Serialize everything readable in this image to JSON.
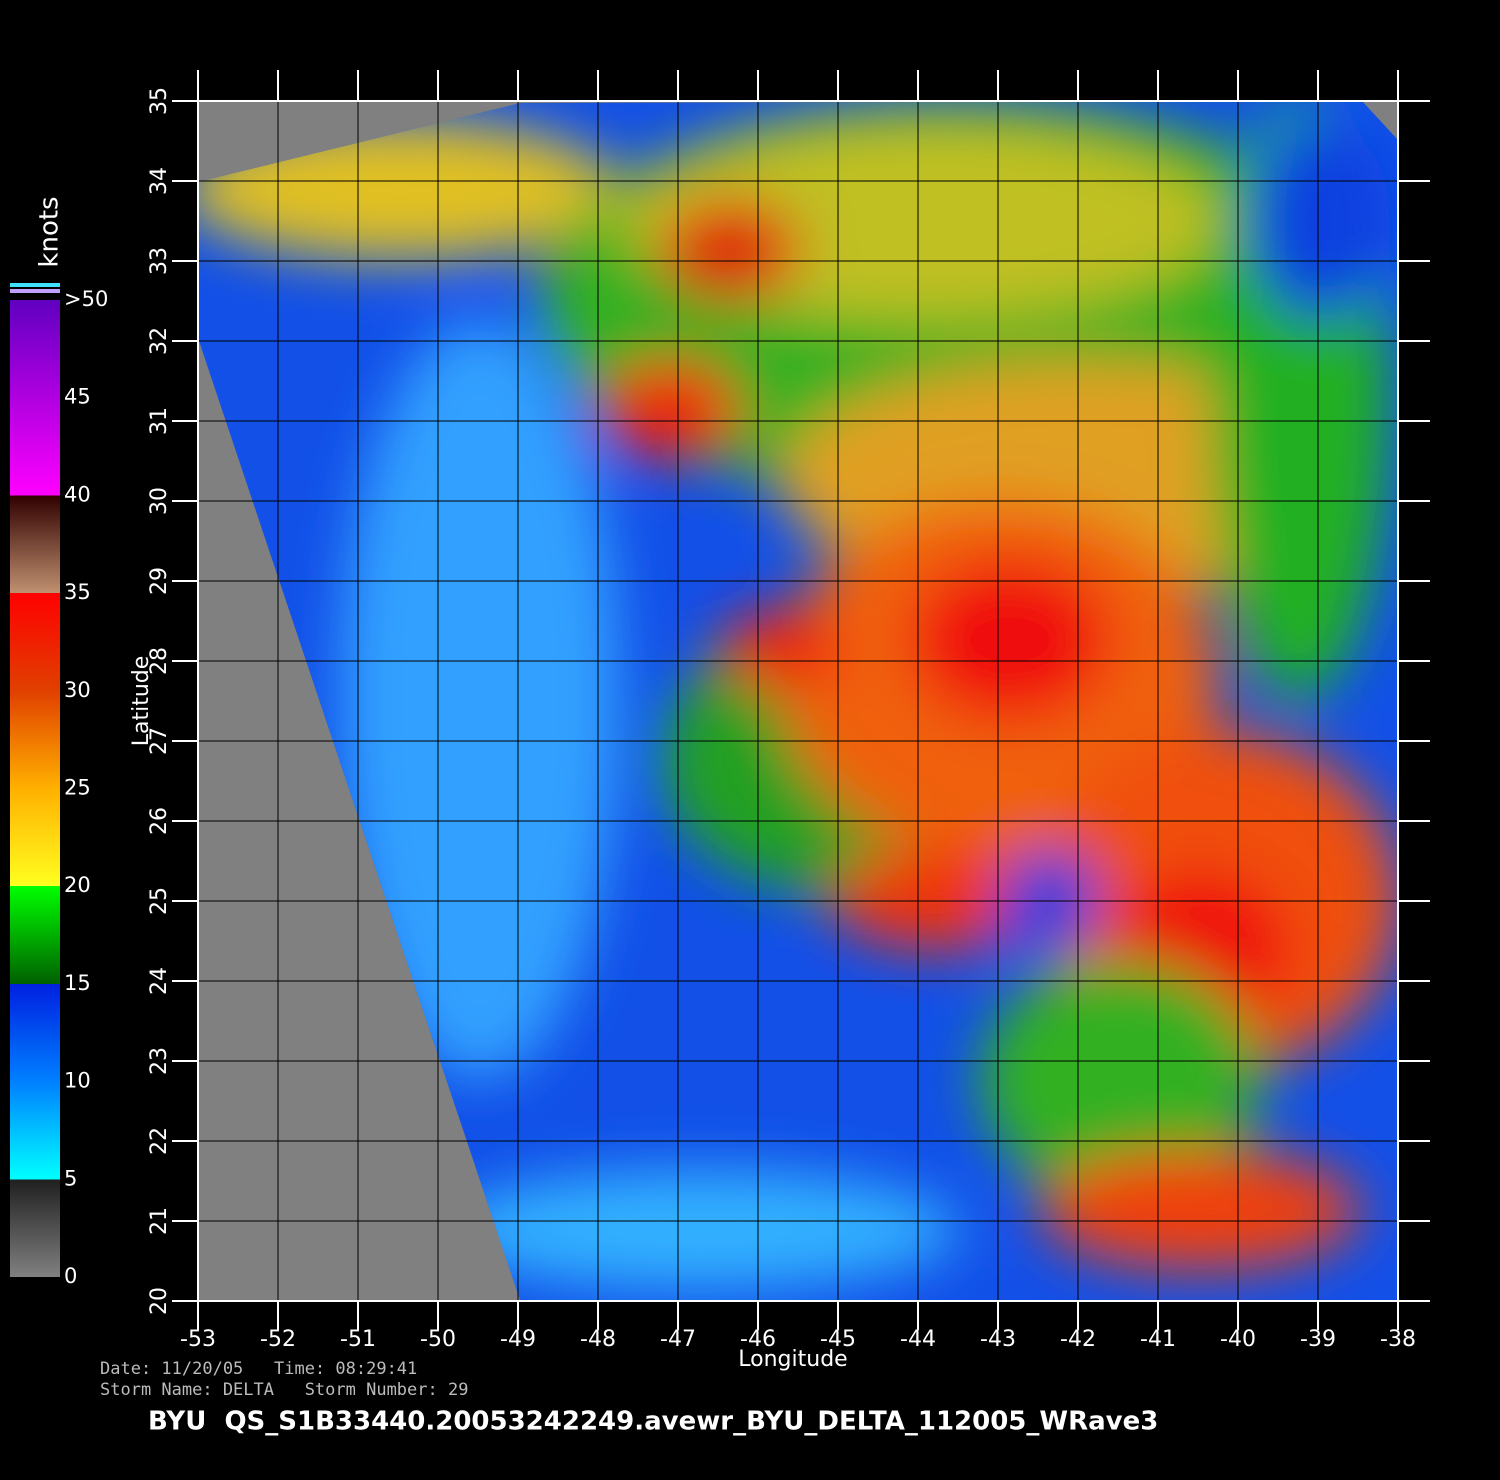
{
  "map": {
    "xlabel": "Longitude",
    "ylabel": "Latitude",
    "xlim": [
      -53,
      -38
    ],
    "ylim": [
      20,
      35
    ],
    "xticks": [
      -53,
      -52,
      -51,
      -50,
      -49,
      -48,
      -47,
      -46,
      -45,
      -44,
      -43,
      -42,
      -41,
      -40,
      -39,
      -38
    ],
    "yticks": [
      20,
      21,
      22,
      23,
      24,
      25,
      26,
      27,
      28,
      29,
      30,
      31,
      32,
      33,
      34,
      35
    ]
  },
  "colorbar": {
    "title": "knots",
    "lim": [
      0,
      50
    ],
    "ticks": [
      0,
      5,
      10,
      15,
      20,
      25,
      30,
      35,
      40,
      45,
      {
        "value": 50,
        "label": ">50"
      }
    ]
  },
  "footer": {
    "date_line": "Date: 11/20/05   Time: 08:29:41",
    "storm_line": "Storm Name: DELTA   Storm Number: 29",
    "filename": "BYU  QS_S1B33440.20053242249.avewr_BYU_DELTA_112005_WRave3"
  }
}
